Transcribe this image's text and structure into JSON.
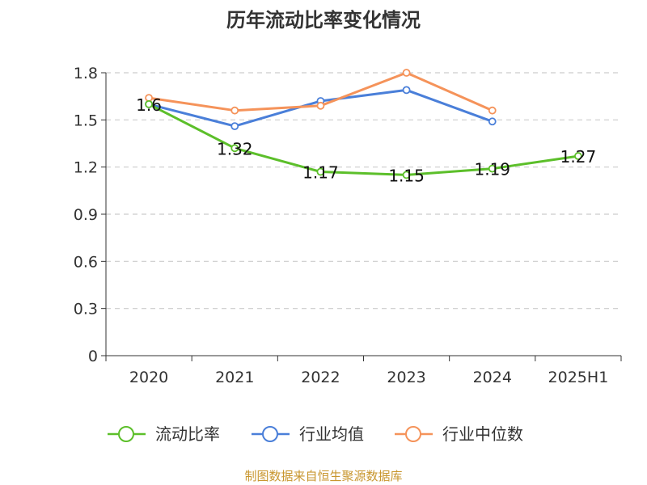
{
  "chart_data": {
    "type": "line",
    "title": "历年流动比率变化情况",
    "categories": [
      "2020",
      "2021",
      "2022",
      "2023",
      "2024",
      "2025H1"
    ],
    "ylim": [
      0,
      1.8
    ],
    "yticks": [
      0,
      0.3,
      0.6,
      0.9,
      1.2,
      1.5,
      1.8
    ],
    "ytick_labels": [
      "0",
      "0.3",
      "0.6",
      "0.9",
      "1.2",
      "1.5",
      "1.8"
    ],
    "grid": true,
    "legend_position": "bottom",
    "series": [
      {
        "name": "流动比率",
        "color": "#5cbf2a",
        "values": [
          1.6,
          1.32,
          1.17,
          1.15,
          1.19,
          1.27
        ],
        "labels": [
          "1.6",
          "1.32",
          "1.17",
          "1.15",
          "1.19",
          "1.27"
        ]
      },
      {
        "name": "行业均值",
        "color": "#4a7fd9",
        "values": [
          1.6,
          1.46,
          1.62,
          1.69,
          1.49,
          null
        ]
      },
      {
        "name": "行业中位数",
        "color": "#f5935a",
        "values": [
          1.64,
          1.56,
          1.59,
          1.8,
          1.56,
          null
        ]
      }
    ]
  },
  "footer": {
    "source": "制图数据来自恒生聚源数据库"
  }
}
